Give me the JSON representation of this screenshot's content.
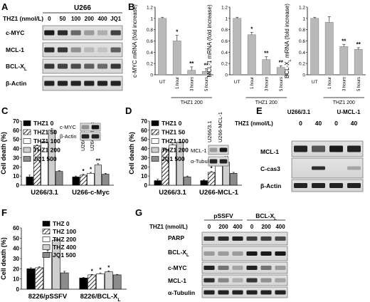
{
  "panels": {
    "A": {
      "letter": "A",
      "cell_line": "U266",
      "treatment_label": "THZ1 (nmol/L)",
      "lanes": [
        "0",
        "50",
        "100",
        "200",
        "400",
        "JQ1"
      ],
      "blots": [
        "c-MYC",
        "MCL-1",
        "BCL-XL",
        "β-Actin"
      ]
    },
    "G": {
      "letter": "G",
      "treatment_label": "THZ1 (nmol/L)",
      "groups": [
        "pSSFV",
        "BCL-XL"
      ],
      "lanes": [
        "0",
        "200",
        "400",
        "0",
        "200",
        "400"
      ],
      "blots": [
        "PARP",
        "BCL-XL",
        "c-MYC",
        "MCL-1",
        "α-Tubulin"
      ]
    },
    "E": {
      "letter": "E",
      "groups": [
        "U266/3.1",
        "U-MCL-1"
      ],
      "treatment_label": "THZ1 (nmol/L)",
      "lanes": [
        "0",
        "40",
        "0",
        "40"
      ],
      "blots": [
        "MCL-1",
        "C-cas3",
        "β-Actin"
      ]
    },
    "C_inset": {
      "lanes": [
        "U266/3.1",
        "U266-c-Myc"
      ],
      "blots": [
        "c-MYC",
        "β-Actin"
      ]
    },
    "D_inset": {
      "lanes": [
        "U266/3.1",
        "U266-MCL-1"
      ],
      "blots": [
        "MCL-1",
        "α-Tubulin"
      ]
    }
  },
  "chart_data": [
    {
      "id": "B1",
      "letter": "B",
      "type": "bar",
      "categories": [
        "UT",
        "1 hour",
        "3 hours",
        "5 hours"
      ],
      "group_label": "THZ1 200",
      "values": [
        1.0,
        0.6,
        0.08,
        0.06
      ],
      "errors": [
        0.02,
        0.1,
        0.06,
        0.05
      ],
      "sig": [
        "",
        "*",
        "**",
        "**"
      ],
      "ylabel": "c-MYC mRNA (fold increase)",
      "yticks": [
        "0",
        "0.2",
        "0.4",
        "0.6",
        "0.8",
        "1",
        "1.2"
      ],
      "ylim": [
        0,
        1.2
      ]
    },
    {
      "id": "B2",
      "type": "bar",
      "categories": [
        "UT",
        "1 hour",
        "3 hours",
        "5 hours"
      ],
      "group_label": "THZ1 200",
      "values": [
        1.0,
        0.71,
        0.27,
        0.13
      ],
      "errors": [
        0.02,
        0.04,
        0.05,
        0.03
      ],
      "sig": [
        "",
        "*",
        "**",
        "**"
      ],
      "ylabel": "MCL-1 mRNA (fold increase)",
      "yticks": [
        "0",
        "0.2",
        "0.4",
        "0.6",
        "0.8",
        "1",
        "1.2"
      ],
      "ylim": [
        0,
        1.2
      ]
    },
    {
      "id": "B3",
      "type": "bar",
      "categories": [
        "UT",
        "1 hour",
        "3 hours",
        "5 hours"
      ],
      "group_label": "THZ1 200",
      "values": [
        1.0,
        0.93,
        0.5,
        0.45
      ],
      "errors": [
        0.02,
        0.1,
        0.04,
        0.03
      ],
      "sig": [
        "",
        "",
        "**",
        "**"
      ],
      "ylabel": "BCL-XL mRNA (fold increase)",
      "yticks": [
        "0",
        "0.2",
        "0.4",
        "0.6",
        "0.8",
        "1",
        "1.2"
      ],
      "ylim": [
        0,
        1.2
      ]
    },
    {
      "id": "C",
      "letter": "C",
      "type": "bar",
      "categories": [
        "U266/3.1",
        "U266-c-Myc"
      ],
      "series": [
        {
          "name": "THZ1 0",
          "values": [
            9,
            9
          ],
          "errors": [
            2,
            1
          ],
          "sig": [
            "",
            ""
          ]
        },
        {
          "name": "THZ1 50",
          "values": [
            43,
            11
          ],
          "errors": [
            1,
            1
          ],
          "sig": [
            "",
            "*"
          ]
        },
        {
          "name": "THZ1 100",
          "values": [
            47,
            13
          ],
          "errors": [
            1,
            1
          ],
          "sig": [
            "",
            "*"
          ]
        },
        {
          "name": "THZ1 200",
          "values": [
            60,
            22
          ],
          "errors": [
            2,
            1.5
          ],
          "sig": [
            "",
            "**"
          ]
        },
        {
          "name": "JQ1 500",
          "values": [
            15,
            12
          ],
          "errors": [
            1,
            1
          ],
          "sig": [
            "",
            ""
          ]
        }
      ],
      "ylabel": "Cell death (%)",
      "yticks": [
        "0",
        "10",
        "20",
        "30",
        "40",
        "50",
        "60",
        "70"
      ],
      "ylim": [
        0,
        70
      ]
    },
    {
      "id": "D",
      "letter": "D",
      "type": "bar",
      "categories": [
        "U266/3.1",
        "U266-MCL-1"
      ],
      "series": [
        {
          "name": "THZ1 0",
          "values": [
            5,
            5
          ],
          "errors": [
            1.5,
            1
          ],
          "sig": [
            "",
            ""
          ]
        },
        {
          "name": "THZ1 50",
          "values": [
            39,
            14
          ],
          "errors": [
            1,
            1
          ],
          "sig": [
            "",
            "*"
          ]
        },
        {
          "name": "THZ1 100",
          "values": [
            44,
            21
          ],
          "errors": [
            1,
            1
          ],
          "sig": [
            "",
            "*"
          ]
        },
        {
          "name": "THZ1 200",
          "values": [
            47,
            25
          ],
          "errors": [
            2.5,
            1
          ],
          "sig": [
            "",
            "**"
          ]
        },
        {
          "name": "JQ1 500",
          "values": [
            9,
            13
          ],
          "errors": [
            1,
            1
          ],
          "sig": [
            "",
            ""
          ]
        }
      ],
      "ylabel": "Cell death (%)",
      "yticks": [
        "0",
        "10",
        "20",
        "30",
        "40",
        "50",
        "60",
        "70"
      ],
      "ylim": [
        0,
        70
      ]
    },
    {
      "id": "F",
      "letter": "F",
      "type": "bar",
      "categories": [
        "8226/pSSFV",
        "8226/BCL-XL"
      ],
      "series": [
        {
          "name": "THZ 0",
          "values": [
            20,
            11
          ],
          "errors": [
            1,
            0.5
          ],
          "sig": [
            "",
            ""
          ]
        },
        {
          "name": "THZ 100",
          "values": [
            21,
            14
          ],
          "errors": [
            1,
            0.5
          ],
          "sig": [
            "",
            "*"
          ]
        },
        {
          "name": "THZ 200",
          "values": [
            36,
            15
          ],
          "errors": [
            2,
            1
          ],
          "sig": [
            "",
            "*"
          ]
        },
        {
          "name": "THZ 400",
          "values": [
            48,
            17
          ],
          "errors": [
            1,
            1
          ],
          "sig": [
            "",
            "*"
          ]
        },
        {
          "name": "JQ1 500",
          "values": [
            16,
            14
          ],
          "errors": [
            1.5,
            0.5
          ],
          "sig": [
            "",
            ""
          ]
        }
      ],
      "ylabel": "Cell death (%)",
      "yticks": [
        "0",
        "10",
        "20",
        "30",
        "40",
        "50",
        "60"
      ],
      "ylim": [
        0,
        60
      ]
    }
  ]
}
